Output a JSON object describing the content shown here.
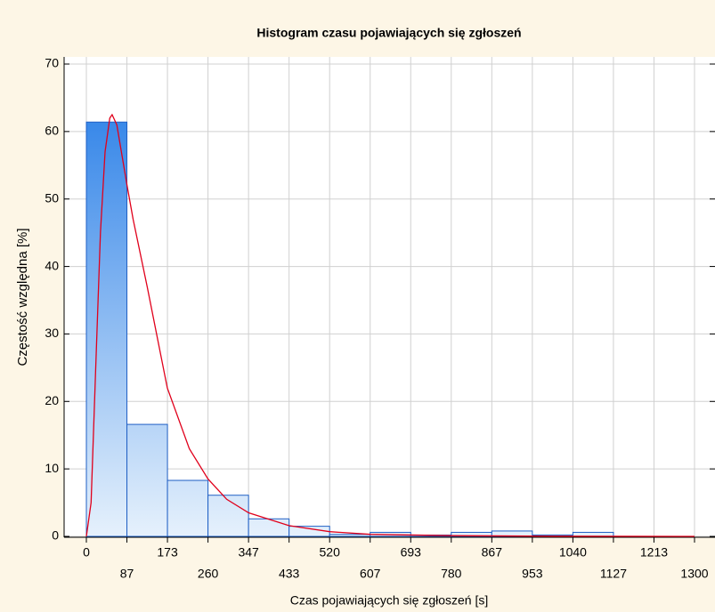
{
  "chart_data": {
    "type": "histogram",
    "title": "Histogram czasu pojawiających się zgłoszeń",
    "xlabel": "Czas pojawiających się zgłoszeń [s]",
    "ylabel": "Częstość względna [%]",
    "bins": [
      0,
      86.67,
      173.33,
      260,
      346.67,
      433.33,
      520,
      606.67,
      693.33,
      780,
      866.67,
      953.33,
      1040,
      1126.67,
      1213.33,
      1300
    ],
    "values": [
      61.4,
      16.6,
      8.3,
      6.1,
      2.6,
      1.5,
      0.3,
      0.6,
      0.2,
      0.6,
      0.8,
      0.2,
      0.6,
      0,
      0
    ],
    "color": "#1e78e6",
    "edge_color": "#1f5fc4",
    "xlim": [
      0,
      1300
    ],
    "ylim": [
      0,
      70
    ],
    "xticks": [
      0,
      {
        "value": 86.67,
        "label": "87"
      },
      {
        "value": 173.33,
        "label": "173"
      },
      260,
      {
        "value": 346.67,
        "label": "347"
      },
      {
        "value": 433.33,
        "label": "433"
      },
      520,
      {
        "value": 606.67,
        "label": "607"
      },
      {
        "value": 693.33,
        "label": "693"
      },
      780,
      {
        "value": 866.67,
        "label": "867"
      },
      {
        "value": 953.33,
        "label": "953"
      },
      1040,
      {
        "value": 1126.67,
        "label": "1127"
      },
      {
        "value": 1213.33,
        "label": "1213"
      },
      1300
    ],
    "yticks": [
      0,
      10,
      20,
      30,
      40,
      50,
      60,
      70
    ],
    "grid": true,
    "fit": {
      "color": "#e0001b",
      "x": [
        0,
        10,
        20,
        30,
        40,
        50,
        55,
        65,
        87,
        100,
        130,
        173,
        220,
        260,
        300,
        347,
        433,
        520,
        607,
        780,
        1000,
        1300
      ],
      "values": [
        0,
        5,
        25,
        45,
        57,
        62,
        62.5,
        61,
        52,
        47,
        37,
        22,
        13,
        8.5,
        5.5,
        3.5,
        1.6,
        0.7,
        0.3,
        0.1,
        0.03,
        0
      ]
    }
  }
}
